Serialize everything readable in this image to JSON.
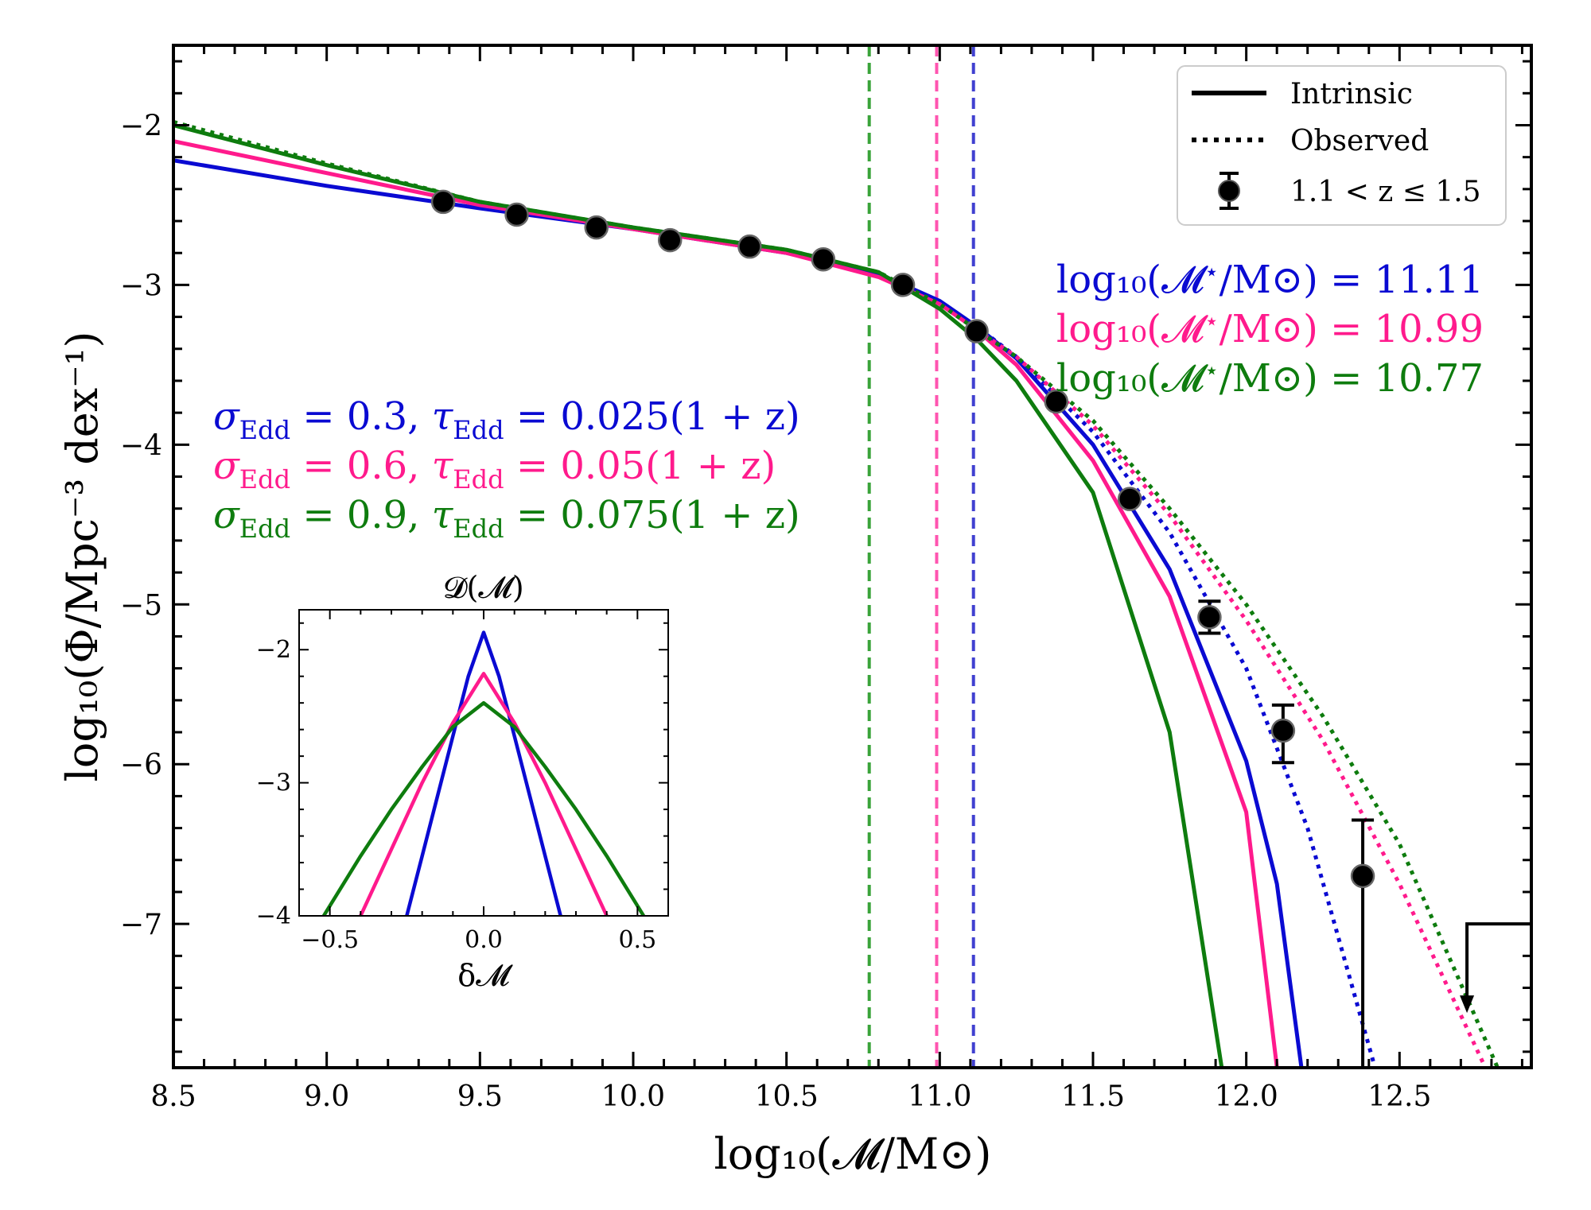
{
  "chart_data": [
    {
      "type": "line",
      "xlabel": "log₁₀(𝓜/M⊙)",
      "ylabel": "log₁₀(Φ/Mpc⁻³ dex⁻¹)",
      "xlim": [
        8.5,
        12.93
      ],
      "ylim": [
        -7.9,
        -1.5
      ],
      "xticks": [
        8.5,
        9.0,
        9.5,
        10.0,
        10.5,
        11.0,
        11.5,
        12.0,
        12.5
      ],
      "xtick_labels": [
        "8.5",
        "9.0",
        "9.5",
        "10.0",
        "10.5",
        "11.0",
        "11.5",
        "12.0",
        "12.5"
      ],
      "yticks": [
        -2,
        -3,
        -4,
        -5,
        -6,
        -7
      ],
      "ytick_labels": [
        "−2",
        "−3",
        "−4",
        "−5",
        "−6",
        "−7"
      ],
      "grid": false,
      "legend": {
        "placement": "top-right",
        "entries": [
          {
            "label": "Intrinsic",
            "style": "solid"
          },
          {
            "label": "Observed",
            "style": "dotted"
          },
          {
            "label": "1.1 < z ≤ 1.5",
            "style": "errorbar-marker"
          }
        ]
      },
      "series": [
        {
          "style": "solid",
          "color": "#0a0ad2",
          "x": [
            8.5,
            9.0,
            9.5,
            10.0,
            10.5,
            10.8,
            11.0,
            11.12,
            11.25,
            11.5,
            11.75,
            12.0,
            12.1,
            12.18
          ],
          "y": [
            -2.22,
            -2.38,
            -2.52,
            -2.65,
            -2.8,
            -2.93,
            -3.1,
            -3.26,
            -3.46,
            -4.0,
            -4.78,
            -5.98,
            -6.75,
            -7.9
          ]
        },
        {
          "style": "dotted",
          "color": "#0a0ad2",
          "x": [
            11.12,
            11.25,
            11.5,
            11.75,
            12.0,
            12.2,
            12.42
          ],
          "y": [
            -3.26,
            -3.45,
            -3.92,
            -4.55,
            -5.4,
            -6.4,
            -7.9
          ]
        },
        {
          "style": "solid",
          "color": "#ff1a8c",
          "x": [
            8.5,
            9.0,
            9.5,
            10.0,
            10.5,
            10.8,
            11.0,
            11.12,
            11.25,
            11.5,
            11.75,
            12.0,
            12.1
          ],
          "y": [
            -2.1,
            -2.3,
            -2.5,
            -2.65,
            -2.8,
            -2.95,
            -3.12,
            -3.28,
            -3.5,
            -4.1,
            -4.95,
            -6.3,
            -7.9
          ]
        },
        {
          "style": "dotted",
          "color": "#ff1a8c",
          "x": [
            11.12,
            11.25,
            11.5,
            11.75,
            12.0,
            12.25,
            12.5,
            12.78
          ],
          "y": [
            -3.28,
            -3.45,
            -3.88,
            -4.44,
            -5.1,
            -5.85,
            -6.75,
            -7.9
          ]
        },
        {
          "style": "solid",
          "color": "#0e7c0e",
          "x": [
            8.5,
            9.0,
            9.5,
            10.0,
            10.5,
            10.8,
            11.0,
            11.12,
            11.25,
            11.5,
            11.75,
            11.92
          ],
          "y": [
            -2.0,
            -2.25,
            -2.48,
            -2.64,
            -2.78,
            -2.92,
            -3.15,
            -3.34,
            -3.6,
            -4.3,
            -5.8,
            -7.9
          ]
        },
        {
          "style": "dotted",
          "color": "#0e7c0e",
          "x": [
            8.5,
            9.0,
            9.5,
            10.0,
            10.5,
            10.8,
            11.0,
            11.12,
            11.25,
            11.5,
            11.75,
            12.0,
            12.25,
            12.5,
            12.82
          ],
          "y": [
            -1.98,
            -2.24,
            -2.48,
            -2.64,
            -2.78,
            -2.92,
            -3.12,
            -3.28,
            -3.45,
            -3.85,
            -4.4,
            -5.0,
            -5.7,
            -6.5,
            -7.9
          ]
        }
      ],
      "points": {
        "label": "1.1 < z ≤ 1.5",
        "x": [
          9.38,
          9.62,
          9.88,
          10.12,
          10.38,
          10.62,
          10.88,
          11.12,
          11.38,
          11.62,
          11.88,
          12.12,
          12.38
        ],
        "y": [
          -2.48,
          -2.56,
          -2.64,
          -2.72,
          -2.76,
          -2.84,
          -3.0,
          -3.29,
          -3.73,
          -4.34,
          -5.08,
          -5.79,
          -6.7
        ],
        "yerr_low": [
          0,
          0,
          0,
          0,
          0,
          0,
          0,
          0,
          0,
          0,
          0.1,
          0.2,
          1.3
        ],
        "yerr_high": [
          0,
          0,
          0,
          0,
          0,
          0,
          0,
          0,
          0,
          0,
          0.1,
          0.16,
          0.35
        ]
      },
      "upper_limit": {
        "x": 12.72,
        "y": -7.0
      },
      "vertical_lines": [
        {
          "x": 10.77,
          "color": "#3aa33a",
          "style": "dashed"
        },
        {
          "x": 10.99,
          "color": "#ff55b0",
          "style": "dashed"
        },
        {
          "x": 11.11,
          "color": "#4040d0",
          "style": "dashed"
        }
      ],
      "annotations": {
        "mstar": [
          {
            "prefix": "log₁₀(𝓜",
            "sup": "⋆",
            "suffix": "/M⊙) = 11.11",
            "color": "#0a0ad2"
          },
          {
            "prefix": "log₁₀(𝓜",
            "sup": "⋆",
            "suffix": "/M⊙) = 10.99",
            "color": "#ff1a8c"
          },
          {
            "prefix": "log₁₀(𝓜",
            "sup": "⋆",
            "suffix": "/M⊙) = 10.77",
            "color": "#0e7c0e"
          }
        ],
        "edd": [
          {
            "sigma": "0.3",
            "tau": "0.025(1 + z)",
            "color": "#0a0ad2"
          },
          {
            "sigma": "0.6",
            "tau": "0.05(1 + z)",
            "color": "#ff1a8c"
          },
          {
            "sigma": "0.9",
            "tau": "0.075(1 + z)",
            "color": "#0e7c0e"
          }
        ],
        "sigma_symbol": "σ",
        "tau_symbol": "τ",
        "edd_sub": "Edd",
        "equals": " = "
      }
    },
    {
      "type": "line",
      "title": "𝓓(𝓜)",
      "xlabel": "δ𝓜",
      "xlim": [
        -0.6,
        0.6
      ],
      "ylim": [
        -4.0,
        -1.7
      ],
      "xticks": [
        -0.5,
        0.0,
        0.5
      ],
      "xtick_labels": [
        "−0.5",
        "0.0",
        "0.5"
      ],
      "yticks": [
        -2,
        -3,
        -4
      ],
      "ytick_labels": [
        "−2",
        "−3",
        "−4"
      ],
      "series": [
        {
          "color": "#0a0ad2",
          "x": [
            -0.25,
            -0.2,
            -0.15,
            -0.1,
            -0.05,
            0.0,
            0.05,
            0.1,
            0.15,
            0.2,
            0.25
          ],
          "y": [
            -4.0,
            -3.55,
            -3.1,
            -2.65,
            -2.2,
            -1.87,
            -2.2,
            -2.65,
            -3.1,
            -3.55,
            -4.0
          ]
        },
        {
          "color": "#ff1a8c",
          "x": [
            -0.4,
            -0.3,
            -0.2,
            -0.1,
            0.0,
            0.1,
            0.2,
            0.3,
            0.4
          ],
          "y": [
            -4.0,
            -3.5,
            -3.0,
            -2.55,
            -2.18,
            -2.55,
            -3.0,
            -3.5,
            -4.0
          ]
        },
        {
          "color": "#0e7c0e",
          "x": [
            -0.52,
            -0.4,
            -0.3,
            -0.2,
            -0.1,
            0.0,
            0.1,
            0.2,
            0.3,
            0.4,
            0.52
          ],
          "y": [
            -4.0,
            -3.55,
            -3.2,
            -2.88,
            -2.58,
            -2.4,
            -2.58,
            -2.88,
            -3.2,
            -3.55,
            -4.0
          ]
        }
      ]
    }
  ]
}
